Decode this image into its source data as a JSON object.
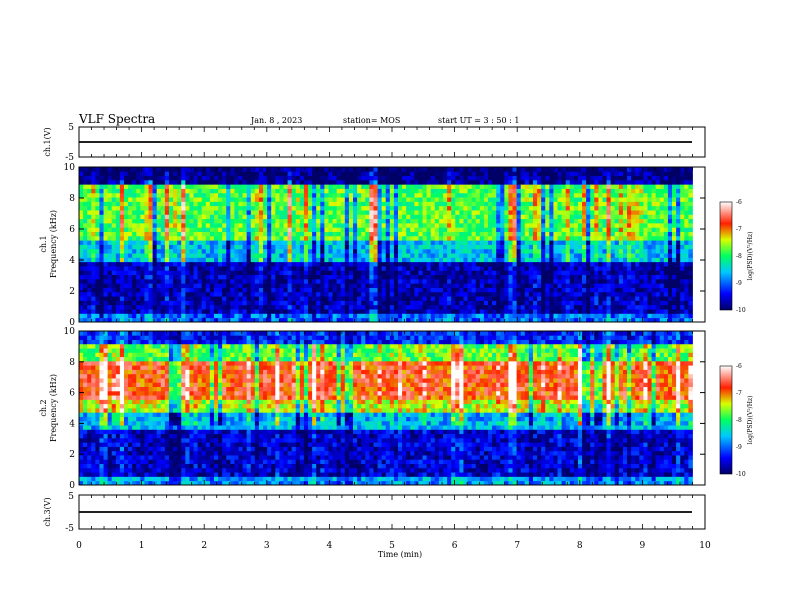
{
  "header": {
    "title": "VLF Spectra",
    "date": "Jan. 8 , 2023",
    "station": "station= MOS",
    "start": "start  UT =  3 : 50 : 1"
  },
  "chart_data": [
    {
      "type": "line",
      "panel": "ch1",
      "ylabel": "ch.1(V)",
      "yticks": [
        "5",
        "-5"
      ],
      "ylim": [
        -5,
        5
      ],
      "xlim": [
        0,
        10
      ],
      "series": [
        {
          "x": [
            0,
            9.8
          ],
          "values": [
            0,
            0
          ]
        }
      ]
    },
    {
      "type": "heatmap",
      "panel": "spec1",
      "ylabel_line1": "ch.1",
      "ylabel_line2": "Frequency (kHz)",
      "yticks": [
        "0",
        "2",
        "4",
        "6",
        "8",
        "10"
      ],
      "ylim": [
        0,
        10
      ],
      "xlim": [
        0,
        10
      ],
      "colorbar": {
        "label": "log(PSD)(V²/Hz)",
        "ticks": [
          "-6",
          "-7",
          "-8",
          "-9",
          "-10"
        ],
        "range": [
          -10,
          -6
        ]
      },
      "bands": [
        {
          "from": 0,
          "to": 0.5,
          "level": -9.0
        },
        {
          "from": 0.5,
          "to": 3.8,
          "level": -9.7
        },
        {
          "from": 3.8,
          "to": 5.2,
          "level": -8.6
        },
        {
          "from": 5.2,
          "to": 9.0,
          "level": -7.8
        },
        {
          "from": 9.0,
          "to": 10,
          "level": -9.9
        }
      ]
    },
    {
      "type": "heatmap",
      "panel": "spec2",
      "ylabel_line1": "ch.2",
      "ylabel_line2": "Frequency (kHz)",
      "yticks": [
        "0",
        "2",
        "4",
        "6",
        "8",
        "10"
      ],
      "ylim": [
        0,
        10
      ],
      "xlim": [
        0,
        10
      ],
      "colorbar": {
        "label": "log(PSD)(V²/Hz)",
        "ticks": [
          "-6",
          "-7",
          "-8",
          "-9",
          "-10"
        ],
        "range": [
          -10,
          -6
        ]
      },
      "bands": [
        {
          "from": 0,
          "to": 0.6,
          "level": -8.8
        },
        {
          "from": 0.6,
          "to": 3.5,
          "level": -9.6
        },
        {
          "from": 3.5,
          "to": 4.8,
          "level": -8.7
        },
        {
          "from": 4.8,
          "to": 5.6,
          "level": -7.5
        },
        {
          "from": 5.6,
          "to": 8.0,
          "level": -6.8
        },
        {
          "from": 8.0,
          "to": 9.2,
          "level": -7.8
        },
        {
          "from": 9.2,
          "to": 10,
          "level": -9.3
        }
      ]
    },
    {
      "type": "line",
      "panel": "ch3",
      "ylabel": "ch.3(V)",
      "yticks": [
        "5",
        "-5"
      ],
      "ylim": [
        -5,
        5
      ],
      "xlim": [
        0,
        10
      ],
      "series": [
        {
          "x": [
            0,
            9.8
          ],
          "values": [
            0,
            0
          ]
        }
      ]
    }
  ],
  "xaxis": {
    "label": "Time (min)",
    "ticks": [
      "0",
      "1",
      "2",
      "3",
      "4",
      "5",
      "6",
      "7",
      "8",
      "9",
      "10"
    ],
    "range": [
      0,
      10
    ],
    "data_end": 9.8
  }
}
